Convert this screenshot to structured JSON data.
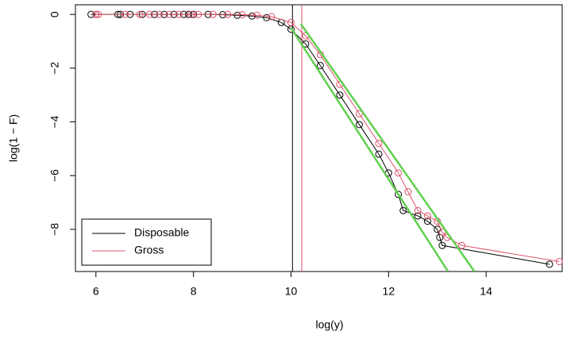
{
  "chart_data": {
    "type": "scatter",
    "xlabel": "log(y)",
    "ylabel": "log(1 − F)",
    "xlim": [
      5.58,
      15.56
    ],
    "ylim": [
      -9.57,
      0.36
    ],
    "xticks": [
      6,
      8,
      10,
      12,
      14
    ],
    "yticks": [
      {
        "value": -8,
        "label": "−8"
      },
      {
        "value": -6,
        "label": "−6"
      },
      {
        "value": -4,
        "label": "−4"
      },
      {
        "value": -2,
        "label": "−2"
      },
      0
    ],
    "legend": "bottom-left",
    "series": [
      {
        "name": "Disposable",
        "color": "#000000",
        "x": [
          5.9,
          6.0,
          6.45,
          6.5,
          6.7,
          6.95,
          7.2,
          7.4,
          7.6,
          7.8,
          7.9,
          8.0,
          8.3,
          8.6,
          8.9,
          9.2,
          9.5,
          9.8,
          10.0,
          10.3,
          10.6,
          11.0,
          11.4,
          11.8,
          12.0,
          12.2,
          12.3,
          12.6,
          12.8,
          13.0,
          13.05,
          13.1,
          15.3
        ],
        "y": [
          0,
          0,
          0,
          0,
          0,
          0,
          0,
          0,
          0,
          0,
          0,
          0,
          0,
          -0.01,
          -0.03,
          -0.06,
          -0.12,
          -0.3,
          -0.55,
          -1.1,
          -1.9,
          -3.0,
          -4.1,
          -5.2,
          -5.9,
          -6.7,
          -7.3,
          -7.5,
          -7.7,
          -8.0,
          -8.3,
          -8.6,
          -9.3
        ]
      },
      {
        "name": "Gross",
        "color": "#df536b",
        "x": [
          6.0,
          6.05,
          6.6,
          6.9,
          7.1,
          7.3,
          7.5,
          7.7,
          7.95,
          8.1,
          8.4,
          8.7,
          9.0,
          9.3,
          9.6,
          10.0,
          10.3,
          10.6,
          11.0,
          11.4,
          11.8,
          12.2,
          12.4,
          12.6,
          12.8,
          13.0,
          13.1,
          13.2,
          13.5,
          15.5
        ],
        "y": [
          0,
          0,
          0,
          0,
          0,
          0,
          0,
          0,
          0,
          0,
          0,
          0,
          -0.01,
          -0.03,
          -0.08,
          -0.3,
          -0.8,
          -1.5,
          -2.6,
          -3.7,
          -4.8,
          -5.9,
          -6.6,
          -7.3,
          -7.5,
          -7.7,
          -8.1,
          -8.3,
          -8.6,
          -9.2
        ]
      }
    ],
    "vlines": [
      {
        "x": 10.03,
        "color": "#000000"
      },
      {
        "x": 10.22,
        "color": "#df536b"
      }
    ],
    "fit_lines": [
      {
        "color": "#61d04f",
        "x": [
          10.0,
          13.22
        ],
        "y": [
          -0.5,
          -9.57
        ]
      },
      {
        "color": "#61d04f",
        "x": [
          10.2,
          13.76
        ],
        "y": [
          -0.35,
          -9.57
        ]
      }
    ]
  }
}
